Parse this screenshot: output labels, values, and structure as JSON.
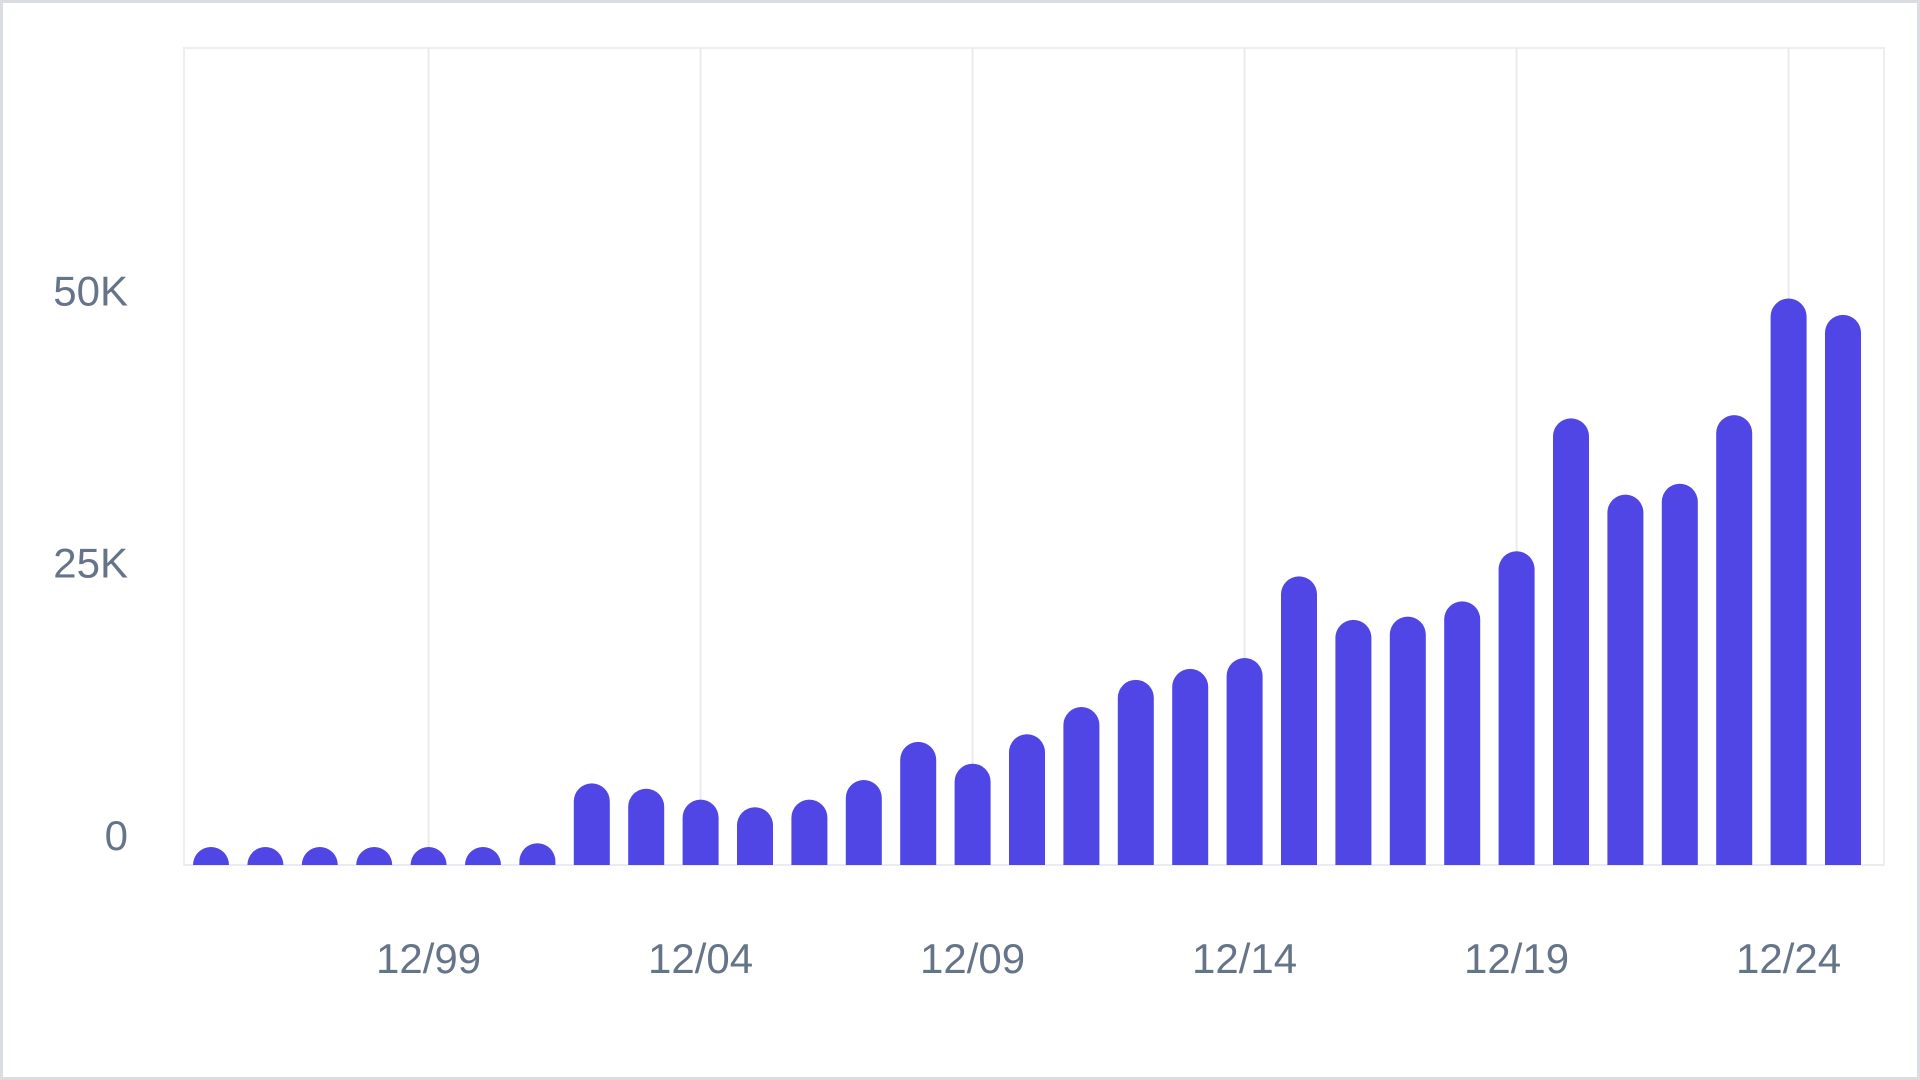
{
  "chart_data": {
    "type": "bar",
    "title": "",
    "xlabel": "",
    "ylabel": "",
    "ylim": [
      0,
      75000
    ],
    "y_ticks": [
      {
        "value": 0,
        "label": "0"
      },
      {
        "value": 25000,
        "label": "25K"
      },
      {
        "value": 50000,
        "label": "50K"
      }
    ],
    "x_ticks": [
      {
        "value": "1999-12",
        "label": "12/99"
      },
      {
        "value": "2004-12",
        "label": "12/04"
      },
      {
        "value": "2009-12",
        "label": "12/09"
      },
      {
        "value": "2014-12",
        "label": "12/14"
      },
      {
        "value": "2019-12",
        "label": "12/19"
      },
      {
        "value": "2024-12",
        "label": "12/24"
      }
    ],
    "grid": "vertical",
    "categories": [
      "1995-12",
      "1996-12",
      "1997-12",
      "1998-12",
      "1999-12",
      "2000-12",
      "2001-12",
      "2002-12",
      "2003-12",
      "2004-12",
      "2005-12",
      "2006-12",
      "2007-12",
      "2008-12",
      "2009-12",
      "2010-12",
      "2011-12",
      "2012-12",
      "2013-12",
      "2014-12",
      "2015-12",
      "2016-12",
      "2017-12",
      "2018-12",
      "2019-12",
      "2020-12",
      "2021-12",
      "2022-12",
      "2023-12",
      "2024-12",
      "2025-12"
    ],
    "values": [
      200,
      200,
      200,
      200,
      200,
      200,
      2000,
      7500,
      7000,
      6000,
      5300,
      6000,
      7800,
      11300,
      9300,
      12000,
      14500,
      17000,
      18000,
      19000,
      26500,
      22500,
      22800,
      24200,
      28800,
      41000,
      34000,
      35000,
      41300,
      52000,
      50500
    ],
    "bar_color": "#4f46e5"
  }
}
